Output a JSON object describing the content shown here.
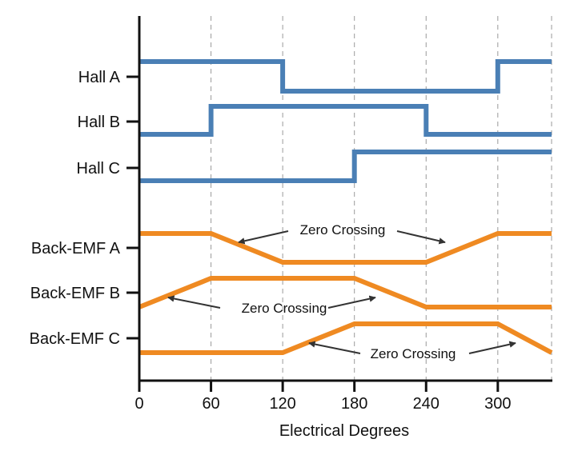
{
  "chart_data": {
    "type": "line",
    "title": "",
    "xlabel": "Electrical Degrees",
    "ylabel": "",
    "xlim": [
      0,
      345
    ],
    "x_ticks": [
      0,
      60,
      120,
      180,
      240,
      300
    ],
    "x_tick_labels": [
      "0",
      "60",
      "120",
      "180",
      "240",
      "300"
    ],
    "grid": "vertical dashed lines at 60, 120, 180, 240, 300, 345",
    "colors": {
      "hall": "#4a7fb5",
      "back_emf": "#ef8a22",
      "axis": "#111111",
      "grid": "#9a9a9a"
    },
    "series": [
      {
        "name": "Hall A",
        "group": "hall",
        "shape": "step",
        "points": [
          [
            0,
            1
          ],
          [
            120,
            1
          ],
          [
            120,
            0
          ],
          [
            300,
            0
          ],
          [
            300,
            1
          ],
          [
            345,
            1
          ]
        ]
      },
      {
        "name": "Hall B",
        "group": "hall",
        "shape": "step",
        "points": [
          [
            0,
            0
          ],
          [
            60,
            0
          ],
          [
            60,
            1
          ],
          [
            240,
            1
          ],
          [
            240,
            0
          ],
          [
            345,
            0
          ]
        ]
      },
      {
        "name": "Hall C",
        "group": "hall",
        "shape": "step",
        "points": [
          [
            0,
            0
          ],
          [
            180,
            0
          ],
          [
            180,
            1
          ],
          [
            345,
            1
          ]
        ]
      },
      {
        "name": "Back-EMF A",
        "group": "back_emf",
        "shape": "trapezoid",
        "points": [
          [
            0,
            1
          ],
          [
            60,
            1
          ],
          [
            120,
            0
          ],
          [
            240,
            0
          ],
          [
            300,
            1
          ],
          [
            345,
            1
          ]
        ]
      },
      {
        "name": "Back-EMF B",
        "group": "back_emf",
        "shape": "trapezoid",
        "points": [
          [
            0,
            0
          ],
          [
            60,
            1
          ],
          [
            180,
            1
          ],
          [
            240,
            0
          ],
          [
            345,
            0
          ]
        ]
      },
      {
        "name": "Back-EMF C",
        "group": "back_emf",
        "shape": "trapezoid",
        "points": [
          [
            0,
            0
          ],
          [
            120,
            0
          ],
          [
            180,
            1
          ],
          [
            300,
            1
          ],
          [
            345,
            0
          ]
        ]
      }
    ],
    "annotations": [
      {
        "text": "Zero Crossing",
        "series": "Back-EMF A",
        "points_to": [
          90,
          270
        ]
      },
      {
        "text": "Zero Crossing",
        "series": "Back-EMF B",
        "points_to": [
          30,
          210
        ]
      },
      {
        "text": "Zero Crossing",
        "series": "Back-EMF C",
        "points_to": [
          150,
          330
        ]
      }
    ]
  }
}
